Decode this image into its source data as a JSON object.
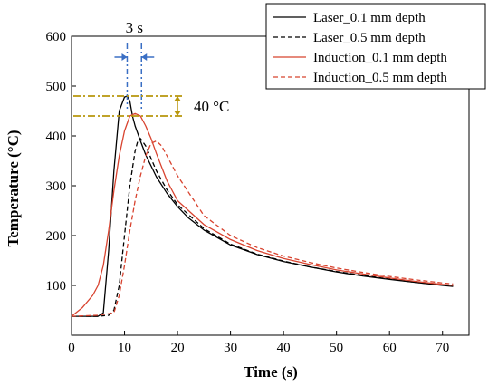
{
  "chart_data": {
    "type": "line",
    "title": "",
    "xlabel": "Time (s)",
    "ylabel": "Temperature (°C)",
    "xlim": [
      0,
      75
    ],
    "ylim": [
      0,
      600
    ],
    "xticks": [
      0,
      10,
      20,
      30,
      40,
      50,
      60,
      70
    ],
    "yticks": [
      100,
      200,
      300,
      400,
      500,
      600
    ],
    "grid": false,
    "legend_position": "top-right",
    "series": [
      {
        "name": "Laser_0.1 mm depth",
        "color": "#000000",
        "dash": "solid",
        "x": [
          0,
          4,
          5,
          6,
          7,
          8,
          9,
          10,
          10.5,
          11,
          11.5,
          12,
          13,
          14,
          15,
          16,
          18,
          20,
          22,
          25,
          30,
          35,
          40,
          45,
          50,
          55,
          60,
          65,
          70,
          72
        ],
        "y": [
          38,
          38,
          38,
          45,
          170,
          330,
          450,
          478,
          480,
          470,
          440,
          420,
          390,
          362,
          340,
          318,
          285,
          258,
          236,
          211,
          181,
          162,
          148,
          137,
          127,
          119,
          112,
          106,
          100,
          98
        ]
      },
      {
        "name": "Laser_0.5 mm depth",
        "color": "#000000",
        "dash": "dashed",
        "x": [
          0,
          5,
          7,
          8,
          9,
          10,
          11,
          12,
          12.5,
          13,
          14,
          15,
          16,
          18,
          20,
          25,
          30,
          35,
          40,
          45,
          50,
          55,
          60,
          65,
          70,
          72
        ],
        "y": [
          38,
          38,
          40,
          50,
          100,
          200,
          300,
          370,
          390,
          395,
          380,
          355,
          330,
          292,
          262,
          214,
          183,
          163,
          149,
          137,
          128,
          120,
          113,
          106,
          101,
          99
        ]
      },
      {
        "name": "Induction_0.1 mm depth",
        "color": "#d8432f",
        "dash": "solid",
        "x": [
          0,
          2,
          4,
          5,
          6,
          7,
          8,
          9,
          10,
          11,
          12,
          13,
          14,
          15,
          16,
          18,
          20,
          25,
          30,
          35,
          40,
          45,
          50,
          55,
          60,
          65,
          70,
          72
        ],
        "y": [
          38,
          55,
          80,
          100,
          140,
          210,
          290,
          360,
          410,
          440,
          445,
          440,
          420,
          395,
          365,
          310,
          270,
          222,
          192,
          170,
          154,
          142,
          131,
          123,
          115,
          108,
          102,
          100
        ]
      },
      {
        "name": "Induction_0.5 mm depth",
        "color": "#d8432f",
        "dash": "dashed",
        "x": [
          0,
          5,
          8,
          9,
          10,
          11,
          12,
          13,
          14,
          15,
          16,
          17,
          18,
          20,
          25,
          30,
          35,
          40,
          45,
          50,
          55,
          60,
          65,
          70,
          72
        ],
        "y": [
          38,
          40,
          45,
          80,
          140,
          210,
          270,
          320,
          360,
          385,
          390,
          380,
          360,
          320,
          240,
          200,
          176,
          159,
          146,
          135,
          126,
          118,
          111,
          105,
          103
        ]
      }
    ],
    "annotations": [
      {
        "type": "horizontal-interval",
        "label": "3 s",
        "x_from": 10.5,
        "x_to": 13.2,
        "color": "#3a6fc4"
      },
      {
        "type": "vertical-interval",
        "label": "40 °C",
        "y_from": 440,
        "y_to": 480,
        "color": "#b8960c"
      }
    ]
  }
}
